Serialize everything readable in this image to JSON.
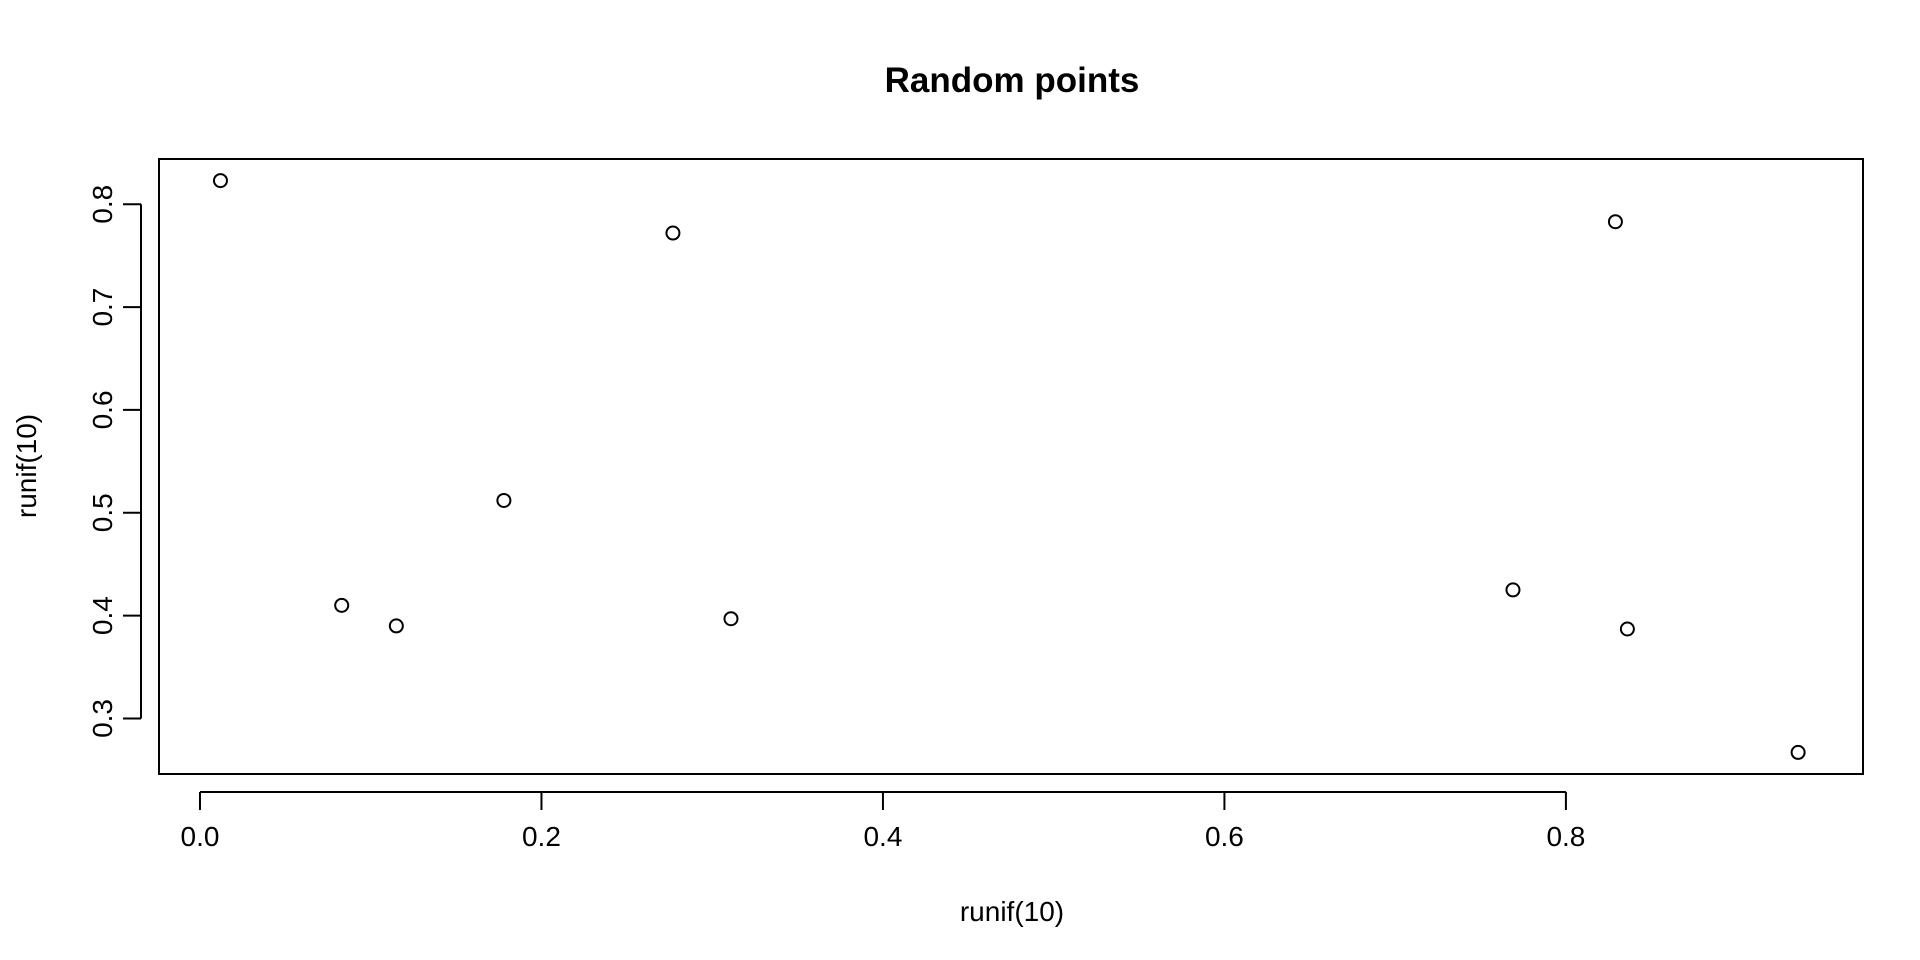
{
  "chart_data": {
    "type": "scatter",
    "title": "Random points",
    "xlabel": "runif(10)",
    "ylabel": "runif(10)",
    "xlim": [
      -0.024,
      0.974
    ],
    "ylim": [
      0.246,
      0.844
    ],
    "x_ticks": [
      0.0,
      0.2,
      0.4,
      0.6,
      0.8
    ],
    "x_tick_labels": [
      "0.0",
      "0.2",
      "0.4",
      "0.6",
      "0.8"
    ],
    "y_ticks": [
      0.3,
      0.4,
      0.5,
      0.6,
      0.7,
      0.8
    ],
    "y_tick_labels": [
      "0.3",
      "0.4",
      "0.5",
      "0.6",
      "0.7",
      "0.8"
    ],
    "grid": false,
    "legend": "none",
    "marker": "open-circle",
    "colors": {
      "foreground": "#000000",
      "background": "#ffffff"
    },
    "x": [
      0.012,
      0.083,
      0.115,
      0.178,
      0.277,
      0.311,
      0.769,
      0.829,
      0.836,
      0.936
    ],
    "y": [
      0.823,
      0.41,
      0.39,
      0.512,
      0.772,
      0.397,
      0.425,
      0.783,
      0.387,
      0.267
    ]
  }
}
